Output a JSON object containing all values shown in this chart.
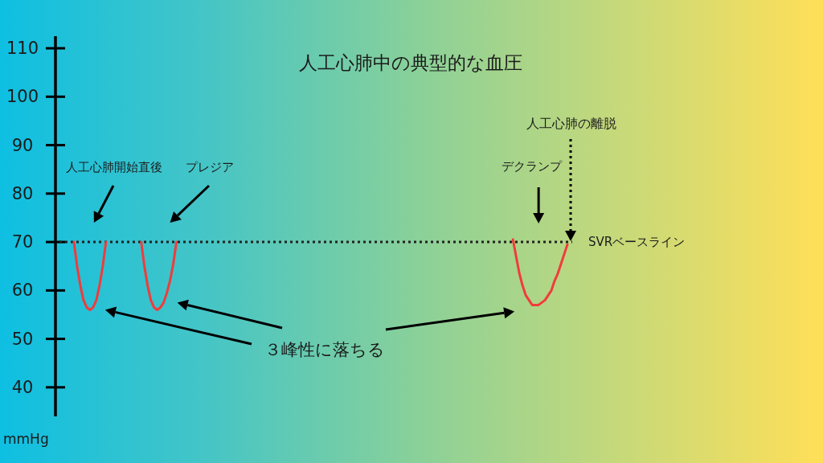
{
  "chart_data": {
    "type": "line",
    "title": "人工心肺中の典型的な血圧",
    "ylabel": "mmHg",
    "categories": [
      null,
      null,
      null,
      null,
      null,
      null,
      null,
      null,
      null,
      null,
      null,
      null,
      null,
      null,
      null,
      null,
      null,
      null,
      null,
      null,
      null,
      null,
      null,
      null,
      null,
      null,
      null,
      null,
      null,
      null,
      null,
      null,
      null,
      null,
      null,
      null,
      null,
      null,
      null,
      null,
      null,
      null,
      null,
      null,
      null,
      null,
      null,
      null,
      null,
      null,
      null,
      null,
      null,
      null,
      null,
      null,
      null,
      null,
      null,
      null,
      null,
      null,
      null,
      null,
      null,
      null,
      null,
      null,
      null,
      null,
      null,
      null,
      null,
      null,
      null,
      null,
      null,
      null,
      null,
      null,
      null,
      null,
      null,
      null,
      null,
      null,
      null,
      null,
      null,
      null,
      null,
      null,
      null,
      null,
      null,
      null,
      null,
      null,
      null,
      null,
      null,
      null,
      null,
      null,
      null,
      null,
      null,
      null,
      null,
      null,
      null,
      null,
      null,
      null,
      null,
      null,
      null,
      null,
      null,
      null,
      null,
      null,
      null,
      null,
      null,
      null,
      null,
      null,
      null,
      null,
      null,
      null,
      null,
      null,
      null,
      null,
      null,
      null,
      null,
      null,
      null,
      null,
      null,
      null,
      null,
      null,
      null,
      null,
      null,
      null,
      null,
      null,
      null,
      null,
      null,
      null,
      null,
      null,
      null,
      null
    ],
    "series": [
      {
        "color": "#f23b3b",
        "values": [
          null,
          null,
          null,
          null,
          70,
          65,
          61,
          58,
          56.5,
          56,
          56.5,
          58,
          61,
          65,
          70,
          null,
          null,
          null,
          null,
          null,
          null,
          null,
          null,
          null,
          null,
          70,
          65,
          61,
          58,
          56.5,
          56,
          56.5,
          57.5,
          59.5,
          62,
          65.5,
          70,
          null,
          null,
          null,
          null,
          null,
          null,
          null,
          null,
          null,
          null,
          null,
          null,
          null,
          null,
          null,
          null,
          null,
          null,
          null,
          null,
          null,
          null,
          null,
          null,
          null,
          null,
          null,
          null,
          null,
          null,
          null,
          null,
          null,
          null,
          null,
          null,
          null,
          null,
          null,
          null,
          null,
          null,
          null,
          null,
          null,
          null,
          null,
          null,
          null,
          null,
          null,
          null,
          null,
          null,
          null,
          null,
          null,
          null,
          null,
          null,
          null,
          null,
          null,
          null,
          null,
          null,
          null,
          null,
          null,
          null,
          null,
          null,
          null,
          null,
          null,
          null,
          null,
          null,
          null,
          null,
          null,
          null,
          null,
          null,
          null,
          null,
          null,
          null,
          null,
          null,
          null,
          null,
          null,
          null,
          null,
          null,
          null,
          null,
          null,
          null,
          null,
          null,
          null,
          null,
          70.5,
          67,
          63.5,
          61,
          59,
          58,
          57,
          57,
          57,
          57.5,
          58,
          59,
          60,
          62,
          63.5,
          65.5,
          67.5,
          69.5,
          null
        ]
      }
    ],
    "ylim": [
      34,
      112.5
    ],
    "yticks": [
      40,
      50,
      60,
      70,
      80,
      90,
      100,
      110
    ],
    "tick_labels": "y",
    "ref_lines": [
      {
        "axis": "y",
        "value": 70,
        "label": "SVRベースライン",
        "line_style": "dotted",
        "color": "#222222"
      }
    ],
    "annotations": [
      "人工心肺開始直後",
      "プレジア",
      "デクランプ",
      "人工心肺の離脱",
      "３峰性に落ちる"
    ]
  }
}
